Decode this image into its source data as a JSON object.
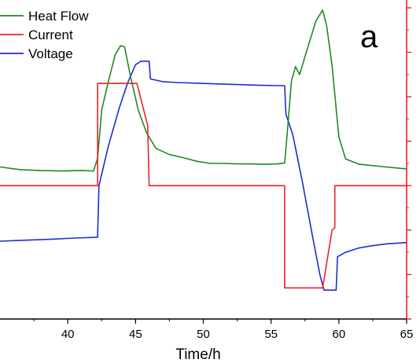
{
  "chart_data": {
    "type": "line",
    "panel_label": "a",
    "xlabel": "Time/h",
    "ylabel": "",
    "xlim": [
      35,
      65
    ],
    "ylim": [
      -3,
      4
    ],
    "x_ticks": [
      40,
      45,
      50,
      55,
      60,
      65
    ],
    "x_tick_labels": [
      "40",
      "45",
      "50",
      "55",
      "60",
      "65"
    ],
    "right_ticks": [
      -3,
      -2,
      -1,
      0,
      1,
      2,
      3,
      4
    ],
    "legend_position": "top-left",
    "grid": false,
    "axis_color": "#e8232a",
    "series": [
      {
        "name": "Heat Flow",
        "color": "#1f8a1f",
        "points": [
          [
            35,
            0.42
          ],
          [
            36.5,
            0.36
          ],
          [
            38,
            0.34
          ],
          [
            39.5,
            0.33
          ],
          [
            41,
            0.34
          ],
          [
            41.9,
            0.33
          ],
          [
            42.2,
            0.62
          ],
          [
            42.5,
            1.7
          ],
          [
            43.0,
            2.35
          ],
          [
            43.5,
            2.95
          ],
          [
            43.9,
            3.15
          ],
          [
            44.2,
            3.12
          ],
          [
            44.6,
            2.5
          ],
          [
            45.2,
            1.7
          ],
          [
            45.8,
            1.2
          ],
          [
            46.5,
            0.84
          ],
          [
            47.5,
            0.7
          ],
          [
            48.5,
            0.63
          ],
          [
            49.5,
            0.55
          ],
          [
            50.5,
            0.5
          ],
          [
            51.5,
            0.5
          ],
          [
            52.5,
            0.49
          ],
          [
            53.5,
            0.49
          ],
          [
            54.5,
            0.48
          ],
          [
            55.5,
            0.49
          ],
          [
            56.0,
            0.51
          ],
          [
            56.2,
            1.2
          ],
          [
            56.5,
            2.35
          ],
          [
            56.8,
            2.68
          ],
          [
            57.1,
            2.5
          ],
          [
            57.4,
            2.8
          ],
          [
            57.8,
            3.2
          ],
          [
            58.3,
            3.7
          ],
          [
            58.8,
            3.95
          ],
          [
            59.1,
            3.6
          ],
          [
            59.5,
            2.7
          ],
          [
            60.0,
            1.1
          ],
          [
            60.5,
            0.6
          ],
          [
            61.5,
            0.48
          ],
          [
            62.5,
            0.45
          ],
          [
            63.5,
            0.42
          ],
          [
            64.5,
            0.39
          ],
          [
            65,
            0.38
          ]
        ]
      },
      {
        "name": "Current",
        "color": "#e8232a",
        "points": [
          [
            35,
            0.0
          ],
          [
            42.2,
            0.0
          ],
          [
            42.2,
            2.3
          ],
          [
            45.1,
            2.3
          ],
          [
            45.9,
            1.35
          ],
          [
            46.0,
            0.0
          ],
          [
            56.0,
            0.0
          ],
          [
            56.0,
            -2.3
          ],
          [
            58.8,
            -2.3
          ],
          [
            59.5,
            -1.0
          ],
          [
            59.7,
            -0.95
          ],
          [
            59.7,
            0.0
          ],
          [
            65,
            0.0
          ]
        ]
      },
      {
        "name": "Voltage",
        "color": "#1f2bd6",
        "points": [
          [
            35,
            -1.25
          ],
          [
            36.5,
            -1.23
          ],
          [
            38.5,
            -1.21
          ],
          [
            40.5,
            -1.18
          ],
          [
            42.2,
            -1.16
          ],
          [
            42.3,
            0.0
          ],
          [
            43.0,
            0.9
          ],
          [
            43.8,
            1.75
          ],
          [
            44.4,
            2.3
          ],
          [
            45.0,
            2.72
          ],
          [
            45.4,
            2.8
          ],
          [
            46.0,
            2.8
          ],
          [
            46.1,
            2.4
          ],
          [
            47,
            2.34
          ],
          [
            48,
            2.32
          ],
          [
            50,
            2.3
          ],
          [
            52,
            2.28
          ],
          [
            54,
            2.26
          ],
          [
            55.5,
            2.25
          ],
          [
            56.0,
            2.25
          ],
          [
            56.1,
            1.6
          ],
          [
            56.6,
            1.15
          ],
          [
            57.3,
            0.1
          ],
          [
            58.0,
            -1.05
          ],
          [
            58.6,
            -2.0
          ],
          [
            58.9,
            -2.35
          ],
          [
            59.5,
            -2.35
          ],
          [
            59.8,
            -2.35
          ],
          [
            59.9,
            -1.6
          ],
          [
            60.5,
            -1.5
          ],
          [
            61.5,
            -1.4
          ],
          [
            62.5,
            -1.35
          ],
          [
            63.5,
            -1.31
          ],
          [
            65,
            -1.28
          ]
        ]
      }
    ]
  }
}
